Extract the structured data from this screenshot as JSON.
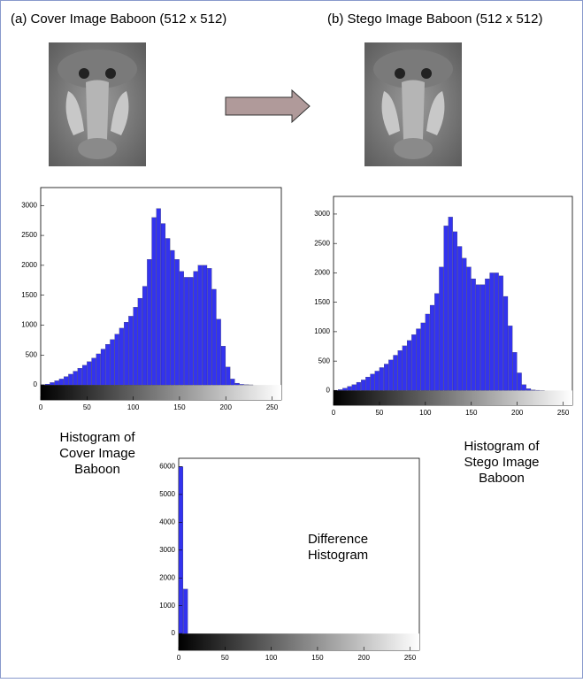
{
  "images": [
    {
      "caption": "(a) Cover Image  Baboon (512 x 512)"
    },
    {
      "caption": "(b) Stego  Image Baboon (512 x 512)"
    }
  ],
  "chart_data": [
    {
      "type": "histogram",
      "caption_lines": [
        "Histogram of",
        "Cover Image",
        "Baboon"
      ],
      "color": "#3333ee",
      "bins": [
        0,
        5,
        10,
        15,
        20,
        25,
        30,
        35,
        40,
        45,
        50,
        55,
        60,
        65,
        70,
        75,
        80,
        85,
        90,
        95,
        100,
        105,
        110,
        115,
        120,
        125,
        130,
        135,
        140,
        145,
        150,
        155,
        160,
        165,
        170,
        175,
        180,
        185,
        190,
        195,
        200,
        205,
        210,
        215,
        220,
        225,
        230,
        235,
        240,
        245,
        250,
        255
      ],
      "values": [
        5,
        15,
        40,
        70,
        100,
        140,
        180,
        230,
        280,
        330,
        390,
        450,
        520,
        600,
        680,
        760,
        850,
        950,
        1050,
        1150,
        1300,
        1450,
        1650,
        2100,
        2800,
        2950,
        2700,
        2450,
        2250,
        2100,
        1900,
        1800,
        1800,
        1900,
        2000,
        2000,
        1950,
        1600,
        1100,
        650,
        300,
        100,
        30,
        10,
        5,
        2,
        0,
        0,
        0,
        0,
        0
      ],
      "xlim": [
        0,
        260
      ],
      "xticks": [
        0,
        50,
        100,
        150,
        200,
        250
      ],
      "ylim": [
        -250,
        3300
      ],
      "yticks": [
        0,
        500,
        1000,
        1500,
        2000,
        2500,
        3000
      ]
    },
    {
      "type": "histogram",
      "caption_lines": [
        "Histogram of",
        "Stego  Image",
        "Baboon"
      ],
      "color": "#3333ee",
      "bins": [
        0,
        5,
        10,
        15,
        20,
        25,
        30,
        35,
        40,
        45,
        50,
        55,
        60,
        65,
        70,
        75,
        80,
        85,
        90,
        95,
        100,
        105,
        110,
        115,
        120,
        125,
        130,
        135,
        140,
        145,
        150,
        155,
        160,
        165,
        170,
        175,
        180,
        185,
        190,
        195,
        200,
        205,
        210,
        215,
        220,
        225,
        230,
        235,
        240,
        245,
        250,
        255
      ],
      "values": [
        5,
        15,
        40,
        70,
        100,
        140,
        180,
        230,
        280,
        330,
        390,
        450,
        520,
        600,
        680,
        760,
        850,
        950,
        1050,
        1150,
        1300,
        1450,
        1650,
        2100,
        2800,
        2950,
        2700,
        2450,
        2250,
        2100,
        1900,
        1800,
        1800,
        1900,
        2000,
        2000,
        1950,
        1600,
        1100,
        650,
        300,
        100,
        30,
        10,
        5,
        2,
        0,
        0,
        0,
        0,
        0
      ],
      "xlim": [
        0,
        260
      ],
      "xticks": [
        0,
        50,
        100,
        150,
        200,
        250
      ],
      "ylim": [
        -250,
        3300
      ],
      "yticks": [
        0,
        500,
        1000,
        1500,
        2000,
        2500,
        3000
      ]
    },
    {
      "type": "histogram",
      "annotation_lines": [
        "Difference",
        "Histogram"
      ],
      "color": "#3333ee",
      "bins": [
        0,
        5,
        10,
        15,
        20,
        25,
        30,
        35,
        40,
        45,
        50,
        55,
        60,
        65,
        70,
        75,
        80,
        85,
        90,
        95,
        100,
        105,
        110,
        115,
        120,
        125,
        130,
        135,
        140,
        145,
        150,
        155,
        160,
        165,
        170,
        175,
        180,
        185,
        190,
        195,
        200,
        205,
        210,
        215,
        220,
        225,
        230,
        235,
        240,
        245,
        250,
        255
      ],
      "values": [
        6000,
        1600,
        0,
        0,
        0,
        0,
        0,
        0,
        0,
        0,
        0,
        0,
        0,
        0,
        0,
        0,
        0,
        0,
        0,
        0,
        0,
        0,
        0,
        0,
        0,
        0,
        0,
        0,
        0,
        0,
        0,
        0,
        0,
        0,
        0,
        0,
        0,
        0,
        0,
        0,
        0,
        0,
        0,
        0,
        0,
        0,
        0,
        0,
        0,
        0,
        0
      ],
      "xlim": [
        0,
        260
      ],
      "xticks": [
        0,
        50,
        100,
        150,
        200,
        250
      ],
      "ylim": [
        -600,
        6300
      ],
      "yticks": [
        0,
        1000,
        2000,
        3000,
        4000,
        5000,
        6000
      ]
    }
  ]
}
